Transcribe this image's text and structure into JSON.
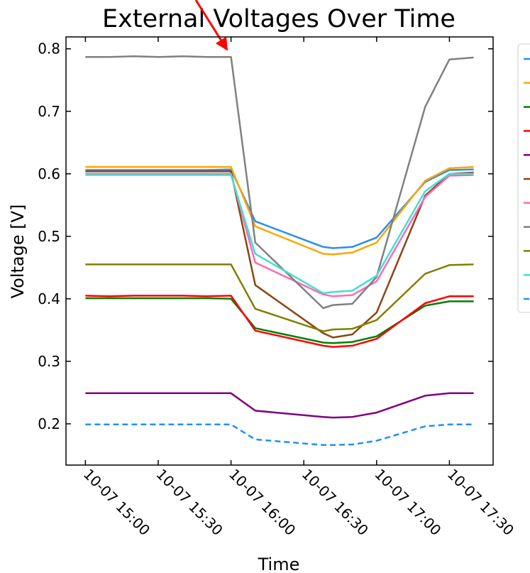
{
  "chart_data": {
    "type": "line",
    "title": "External Voltages Over Time",
    "xlabel": "Time",
    "ylabel": "Voltage [V]",
    "x": [
      "10-07 15:00",
      "10-07 15:10",
      "10-07 15:20",
      "10-07 15:30",
      "10-07 15:40",
      "10-07 15:50",
      "10-07 16:00",
      "10-07 16:10",
      "10-07 16:38",
      "10-07 16:42",
      "10-07 16:50",
      "10-07 17:00",
      "10-07 17:20",
      "10-07 17:30",
      "10-07 17:40"
    ],
    "xlim": [
      "10-07 14:52",
      "10-07 17:48"
    ],
    "xticks": [
      "10-07 15:00",
      "10-07 15:30",
      "10-07 16:00",
      "10-07 16:30",
      "10-07 17:00",
      "10-07 17:30"
    ],
    "ylim": [
      0.134,
      0.819
    ],
    "yticks": [
      0.2,
      0.3,
      0.4,
      0.5,
      0.6,
      0.7,
      0.8
    ],
    "legend": "outside right",
    "series": [
      {
        "color": "#2b8ef0",
        "values": [
          0.606,
          0.606,
          0.606,
          0.606,
          0.606,
          0.606,
          0.607,
          0.524,
          0.483,
          0.481,
          0.483,
          0.498,
          0.587,
          0.606,
          0.607
        ]
      },
      {
        "color": "#ffa500",
        "values": [
          0.611,
          0.611,
          0.611,
          0.611,
          0.611,
          0.611,
          0.611,
          0.516,
          0.472,
          0.471,
          0.474,
          0.49,
          0.589,
          0.609,
          0.611
        ]
      },
      {
        "color": "#008000",
        "values": [
          0.401,
          0.401,
          0.401,
          0.401,
          0.401,
          0.401,
          0.4,
          0.353,
          0.33,
          0.329,
          0.331,
          0.34,
          0.389,
          0.396,
          0.396
        ]
      },
      {
        "color": "#ff0000",
        "values": [
          0.405,
          0.404,
          0.405,
          0.405,
          0.405,
          0.404,
          0.405,
          0.349,
          0.325,
          0.323,
          0.325,
          0.336,
          0.393,
          0.404,
          0.404
        ]
      },
      {
        "color": "#800080",
        "values": [
          0.249,
          0.249,
          0.249,
          0.249,
          0.249,
          0.249,
          0.249,
          0.221,
          0.211,
          0.21,
          0.211,
          0.218,
          0.245,
          0.249,
          0.249
        ]
      },
      {
        "color": "#8b4513",
        "values": [
          0.604,
          0.604,
          0.604,
          0.604,
          0.604,
          0.604,
          0.604,
          0.422,
          0.345,
          0.338,
          0.343,
          0.378,
          0.565,
          0.6,
          0.602
        ]
      },
      {
        "color": "#ff69b4",
        "values": [
          0.6,
          0.6,
          0.6,
          0.6,
          0.6,
          0.6,
          0.6,
          0.458,
          0.407,
          0.404,
          0.406,
          0.428,
          0.563,
          0.597,
          0.598
        ]
      },
      {
        "color": "#808080",
        "values": [
          0.787,
          0.787,
          0.788,
          0.787,
          0.788,
          0.787,
          0.787,
          0.49,
          0.385,
          0.39,
          0.392,
          0.435,
          0.707,
          0.783,
          0.786
        ]
      },
      {
        "color": "#808000",
        "values": [
          0.455,
          0.455,
          0.455,
          0.455,
          0.455,
          0.455,
          0.455,
          0.384,
          0.348,
          0.351,
          0.352,
          0.366,
          0.44,
          0.454,
          0.455
        ]
      },
      {
        "color": "#40e0d0",
        "values": [
          0.598,
          0.598,
          0.598,
          0.598,
          0.598,
          0.598,
          0.598,
          0.472,
          0.409,
          0.411,
          0.413,
          0.437,
          0.572,
          0.6,
          0.6
        ]
      },
      {
        "color": "#1e90ff",
        "linestyle": "dashed",
        "values": [
          0.199,
          0.199,
          0.199,
          0.199,
          0.199,
          0.199,
          0.199,
          0.175,
          0.166,
          0.166,
          0.167,
          0.173,
          0.196,
          0.199,
          0.199
        ]
      }
    ]
  }
}
